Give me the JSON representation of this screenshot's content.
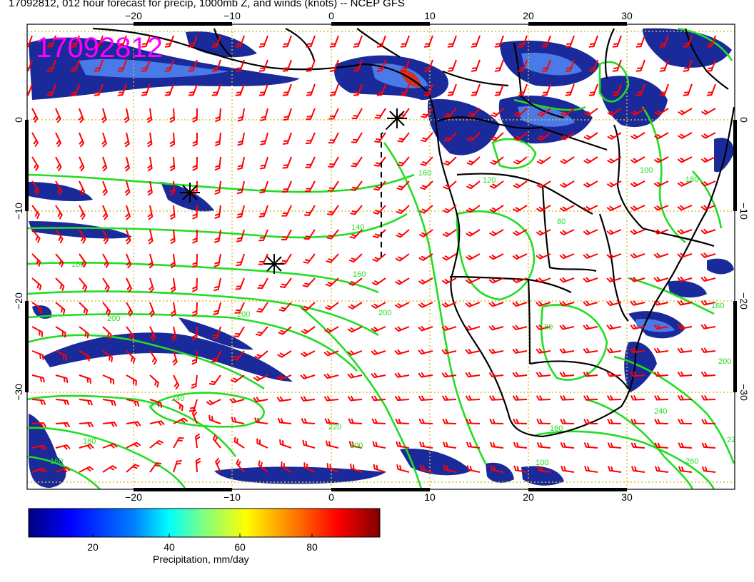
{
  "header": {
    "title": "17092812, 012 hour forecast for precip, 1000mb Z, and winds (knots) -- NCEP GFS",
    "date_stamp": "17092812"
  },
  "map": {
    "lon_ticks": [
      "−20",
      "−10",
      "0",
      "10",
      "20",
      "30"
    ],
    "lat_ticks": [
      "0",
      "−10",
      "−20",
      "−30"
    ],
    "colors": {
      "frame": "#000000",
      "grid": "#ddbb33",
      "coastline": "#000000",
      "wind_barbs": "#ff0000",
      "height_contours": "#22dd22",
      "precip_light": "#1a2a9a",
      "precip_moderate": "#4a7ae8",
      "precip_heavy": "#d43020",
      "date_stamp": "#ff00ff"
    },
    "contour_labels": [
      "140",
      "160",
      "160",
      "200",
      "200",
      "200",
      "240",
      "220",
      "200",
      "180",
      "160",
      "160",
      "120",
      "160",
      "100",
      "80",
      "80",
      "100",
      "160",
      "200",
      "220",
      "240",
      "260",
      "180"
    ],
    "markers": [
      "asterisk",
      "asterisk",
      "asterisk"
    ]
  },
  "colorbar": {
    "title": "Precipitation, mm/day",
    "tick_labels": [
      "20",
      "40",
      "60",
      "80"
    ],
    "stops": [
      "#00007f",
      "#0000ff",
      "#0080ff",
      "#00ffff",
      "#80ff80",
      "#ffff00",
      "#ff8000",
      "#ff0000",
      "#7f0000"
    ]
  }
}
